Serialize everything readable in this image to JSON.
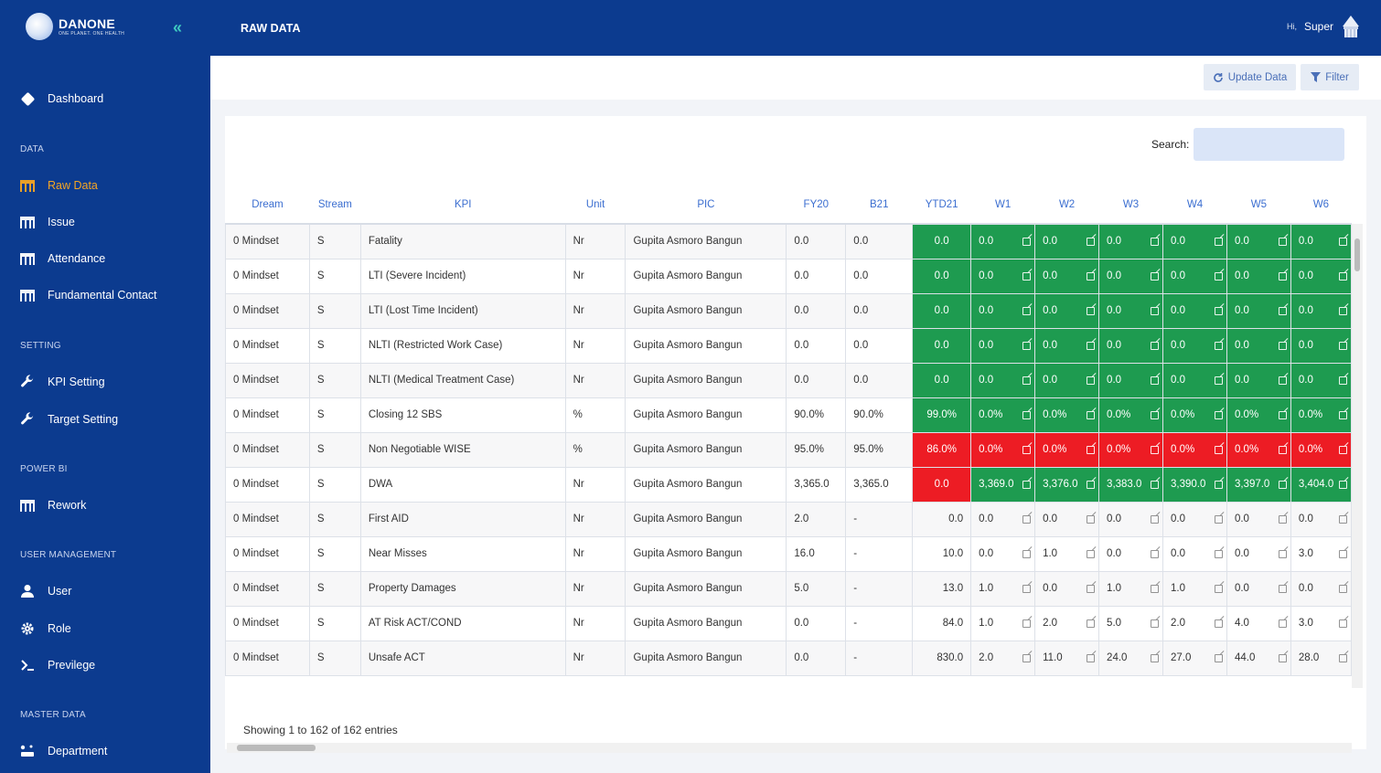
{
  "brand": {
    "name": "DANONE",
    "tagline": "ONE PLANET. ONE HEALTH"
  },
  "header": {
    "title": "RAW DATA",
    "greeting": "Hi,",
    "user_name": "Super"
  },
  "sidebar": {
    "dashboard": "Dashboard",
    "sections": {
      "data": "DATA",
      "setting": "SETTING",
      "power_bi": "POWER BI",
      "user_management": "USER MANAGEMENT",
      "master_data": "MASTER DATA"
    },
    "items": {
      "raw_data": "Raw Data",
      "issue": "Issue",
      "attendance": "Attendance",
      "fundamental_contact": "Fundamental Contact",
      "kpi_setting": "KPI Setting",
      "target_setting": "Target Setting",
      "rework": "Rework",
      "user": "User",
      "role": "Role",
      "previlege": "Previlege",
      "department": "Department"
    },
    "active_color": "#f5a623"
  },
  "toolbar": {
    "update_label": "Update Data",
    "filter_label": "Filter"
  },
  "search": {
    "label": "Search:",
    "placeholder": ""
  },
  "table": {
    "columns": [
      "Dream",
      "Stream",
      "KPI",
      "Unit",
      "PIC",
      "FY20",
      "B21",
      "YTD21",
      "W1",
      "W2",
      "W3",
      "W4",
      "W5",
      "W6"
    ],
    "colors": {
      "green": "#1e9b50",
      "red": "#ed1c24"
    },
    "rows": [
      {
        "dream": "0 Mindset",
        "stream": "S",
        "kpi": "Fatality",
        "unit": "Nr",
        "pic": "Gupita Asmoro Bangun",
        "fy20": "0.0",
        "b21": "0.0",
        "ytd21": "0.0",
        "ytd_status": "green",
        "weeks": [
          "0.0",
          "0.0",
          "0.0",
          "0.0",
          "0.0",
          "0.0"
        ],
        "week_status": "green"
      },
      {
        "dream": "0 Mindset",
        "stream": "S",
        "kpi": "LTI (Severe Incident)",
        "unit": "Nr",
        "pic": "Gupita Asmoro Bangun",
        "fy20": "0.0",
        "b21": "0.0",
        "ytd21": "0.0",
        "ytd_status": "green",
        "weeks": [
          "0.0",
          "0.0",
          "0.0",
          "0.0",
          "0.0",
          "0.0"
        ],
        "week_status": "green"
      },
      {
        "dream": "0 Mindset",
        "stream": "S",
        "kpi": "LTI (Lost Time Incident)",
        "unit": "Nr",
        "pic": "Gupita Asmoro Bangun",
        "fy20": "0.0",
        "b21": "0.0",
        "ytd21": "0.0",
        "ytd_status": "green",
        "weeks": [
          "0.0",
          "0.0",
          "0.0",
          "0.0",
          "0.0",
          "0.0"
        ],
        "week_status": "green"
      },
      {
        "dream": "0 Mindset",
        "stream": "S",
        "kpi": "NLTI (Restricted Work Case)",
        "unit": "Nr",
        "pic": "Gupita Asmoro Bangun",
        "fy20": "0.0",
        "b21": "0.0",
        "ytd21": "0.0",
        "ytd_status": "green",
        "weeks": [
          "0.0",
          "0.0",
          "0.0",
          "0.0",
          "0.0",
          "0.0"
        ],
        "week_status": "green"
      },
      {
        "dream": "0 Mindset",
        "stream": "S",
        "kpi": "NLTI (Medical Treatment Case)",
        "unit": "Nr",
        "pic": "Gupita Asmoro Bangun",
        "fy20": "0.0",
        "b21": "0.0",
        "ytd21": "0.0",
        "ytd_status": "green",
        "weeks": [
          "0.0",
          "0.0",
          "0.0",
          "0.0",
          "0.0",
          "0.0"
        ],
        "week_status": "green"
      },
      {
        "dream": "0 Mindset",
        "stream": "S",
        "kpi": "Closing 12 SBS",
        "unit": "%",
        "pic": "Gupita Asmoro Bangun",
        "fy20": "90.0%",
        "b21": "90.0%",
        "ytd21": "99.0%",
        "ytd_status": "green",
        "weeks": [
          "0.0%",
          "0.0%",
          "0.0%",
          "0.0%",
          "0.0%",
          "0.0%"
        ],
        "week_status": "green"
      },
      {
        "dream": "0 Mindset",
        "stream": "S",
        "kpi": "Non Negotiable WISE",
        "unit": "%",
        "pic": "Gupita Asmoro Bangun",
        "fy20": "95.0%",
        "b21": "95.0%",
        "ytd21": "86.0%",
        "ytd_status": "red",
        "weeks": [
          "0.0%",
          "0.0%",
          "0.0%",
          "0.0%",
          "0.0%",
          "0.0%"
        ],
        "week_status": "red"
      },
      {
        "dream": "0 Mindset",
        "stream": "S",
        "kpi": "DWA",
        "unit": "Nr",
        "pic": "Gupita Asmoro Bangun",
        "fy20": "3,365.0",
        "b21": "3,365.0",
        "ytd21": "0.0",
        "ytd_status": "red",
        "weeks": [
          "3,369.0",
          "3,376.0",
          "3,383.0",
          "3,390.0",
          "3,397.0",
          "3,404.0"
        ],
        "week_status": "green"
      },
      {
        "dream": "0 Mindset",
        "stream": "S",
        "kpi": "First AID",
        "unit": "Nr",
        "pic": "Gupita Asmoro Bangun",
        "fy20": "2.0",
        "b21": "-",
        "ytd21": "0.0",
        "ytd_status": "none",
        "weeks": [
          "0.0",
          "0.0",
          "0.0",
          "0.0",
          "0.0",
          "0.0"
        ],
        "week_status": "none"
      },
      {
        "dream": "0 Mindset",
        "stream": "S",
        "kpi": "Near Misses",
        "unit": "Nr",
        "pic": "Gupita Asmoro Bangun",
        "fy20": "16.0",
        "b21": "-",
        "ytd21": "10.0",
        "ytd_status": "none",
        "weeks": [
          "0.0",
          "1.0",
          "0.0",
          "0.0",
          "0.0",
          "3.0"
        ],
        "week_status": "none"
      },
      {
        "dream": "0 Mindset",
        "stream": "S",
        "kpi": "Property Damages",
        "unit": "Nr",
        "pic": "Gupita Asmoro Bangun",
        "fy20": "5.0",
        "b21": "-",
        "ytd21": "13.0",
        "ytd_status": "none",
        "weeks": [
          "1.0",
          "0.0",
          "1.0",
          "1.0",
          "0.0",
          "0.0"
        ],
        "week_status": "none"
      },
      {
        "dream": "0 Mindset",
        "stream": "S",
        "kpi": "AT Risk ACT/COND",
        "unit": "Nr",
        "pic": "Gupita Asmoro Bangun",
        "fy20": "0.0",
        "b21": "-",
        "ytd21": "84.0",
        "ytd_status": "none",
        "weeks": [
          "1.0",
          "2.0",
          "5.0",
          "2.0",
          "4.0",
          "3.0"
        ],
        "week_status": "none"
      },
      {
        "dream": "0 Mindset",
        "stream": "S",
        "kpi": "Unsafe ACT",
        "unit": "Nr",
        "pic": "Gupita Asmoro Bangun",
        "fy20": "0.0",
        "b21": "-",
        "ytd21": "830.0",
        "ytd_status": "none",
        "weeks": [
          "2.0",
          "11.0",
          "24.0",
          "27.0",
          "44.0",
          "28.0"
        ],
        "week_status": "none"
      }
    ]
  },
  "footer": {
    "entries_text": "Showing 1 to 162 of 162 entries"
  }
}
